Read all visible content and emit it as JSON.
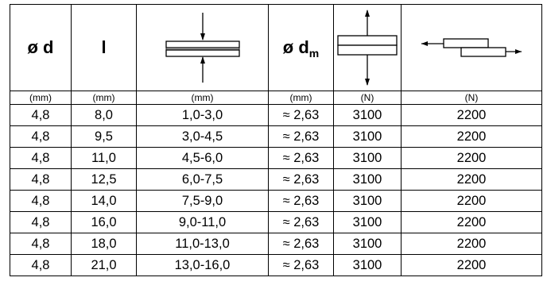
{
  "header": {
    "diameter": "ø d",
    "length": "l",
    "mean_diameter": "ø d",
    "mean_diameter_subscript": "m"
  },
  "units": [
    "(mm)",
    "(mm)",
    "(mm)",
    "(mm)",
    "(N)",
    "(N)"
  ],
  "rows": [
    [
      "4,8",
      "8,0",
      "1,0-3,0",
      "≈ 2,63",
      "3100",
      "2200"
    ],
    [
      "4,8",
      "9,5",
      "3,0-4,5",
      "≈ 2,63",
      "3100",
      "2200"
    ],
    [
      "4,8",
      "11,0",
      "4,5-6,0",
      "≈ 2,63",
      "3100",
      "2200"
    ],
    [
      "4,8",
      "12,5",
      "6,0-7,5",
      "≈ 2,63",
      "3100",
      "2200"
    ],
    [
      "4,8",
      "14,0",
      "7,5-9,0",
      "≈ 2,63",
      "3100",
      "2200"
    ],
    [
      "4,8",
      "16,0",
      "9,0-11,0",
      "≈ 2,63",
      "3100",
      "2200"
    ],
    [
      "4,8",
      "18,0",
      "11,0-13,0",
      "≈ 2,63",
      "3100",
      "2200"
    ],
    [
      "4,8",
      "21,0",
      "13,0-16,0",
      "≈ 2,63",
      "3100",
      "2200"
    ]
  ],
  "icons": {
    "grip_range": "clamping-thickness-icon",
    "tensile": "tensile-force-icon",
    "shear": "shear-force-icon"
  }
}
